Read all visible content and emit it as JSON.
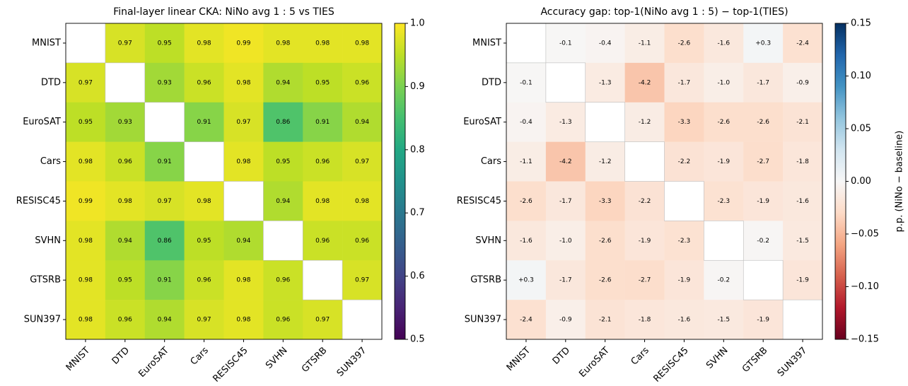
{
  "chart_data": [
    {
      "type": "heatmap",
      "title": "Final-layer linear CKA: NiNo avg 1 : 5 vs TIES",
      "x_categories": [
        "MNIST",
        "DTD",
        "EuroSAT",
        "Cars",
        "RESISC45",
        "SVHN",
        "GTSRB",
        "SUN397"
      ],
      "y_categories": [
        "MNIST",
        "DTD",
        "EuroSAT",
        "Cars",
        "RESISC45",
        "SVHN",
        "GTSRB",
        "SUN397"
      ],
      "values": [
        [
          null,
          0.97,
          0.95,
          0.98,
          0.99,
          0.98,
          0.98,
          0.98
        ],
        [
          0.97,
          null,
          0.93,
          0.96,
          0.98,
          0.94,
          0.95,
          0.96
        ],
        [
          0.95,
          0.93,
          null,
          0.91,
          0.97,
          0.86,
          0.91,
          0.94
        ],
        [
          0.98,
          0.96,
          0.91,
          null,
          0.98,
          0.95,
          0.96,
          0.97
        ],
        [
          0.99,
          0.98,
          0.97,
          0.98,
          null,
          0.94,
          0.98,
          0.98
        ],
        [
          0.98,
          0.94,
          0.86,
          0.95,
          0.94,
          null,
          0.96,
          0.96
        ],
        [
          0.98,
          0.95,
          0.91,
          0.96,
          0.98,
          0.96,
          null,
          0.97
        ],
        [
          0.98,
          0.96,
          0.94,
          0.97,
          0.98,
          0.96,
          0.97,
          null
        ]
      ],
      "colormap": "viridis",
      "clim": [
        0.5,
        1.0
      ],
      "colorbar_ticks": [
        0.5,
        0.6,
        0.7,
        0.8,
        0.9,
        {
          "value": 1.0,
          "label": "1.0"
        }
      ]
    },
    {
      "type": "heatmap",
      "title": "Accuracy gap: top-1(NiNo avg 1 : 5) − top-1(TIES)",
      "x_categories": [
        "MNIST",
        "DTD",
        "EuroSAT",
        "Cars",
        "RESISC45",
        "SVHN",
        "GTSRB",
        "SUN397"
      ],
      "y_categories": [
        "MNIST",
        "DTD",
        "EuroSAT",
        "Cars",
        "RESISC45",
        "SVHN",
        "GTSRB",
        "SUN397"
      ],
      "values": [
        [
          null,
          -0.001,
          -0.004,
          -0.011,
          -0.026,
          -0.016,
          0.003,
          -0.024
        ],
        [
          -0.001,
          null,
          -0.013,
          -0.042,
          -0.017,
          -0.01,
          -0.017,
          -0.009
        ],
        [
          -0.004,
          -0.013,
          null,
          -0.012,
          -0.033,
          -0.026,
          -0.026,
          -0.021
        ],
        [
          -0.011,
          -0.042,
          -0.012,
          null,
          -0.022,
          -0.019,
          -0.027,
          -0.018
        ],
        [
          -0.026,
          -0.017,
          -0.033,
          -0.022,
          null,
          -0.023,
          -0.019,
          -0.016
        ],
        [
          -0.016,
          -0.01,
          -0.026,
          -0.019,
          -0.023,
          null,
          -0.002,
          -0.015
        ],
        [
          0.003,
          -0.017,
          -0.026,
          -0.027,
          -0.019,
          -0.002,
          null,
          -0.019
        ],
        [
          -0.024,
          -0.009,
          -0.021,
          -0.018,
          -0.016,
          -0.015,
          -0.019,
          null
        ]
      ],
      "value_labels": [
        [
          null,
          "-0.1",
          "-0.4",
          "-1.1",
          "-2.6",
          "-1.6",
          "+0.3",
          "-2.4"
        ],
        [
          "-0.1",
          null,
          "-1.3",
          "-4.2",
          "-1.7",
          "-1.0",
          "-1.7",
          "-0.9"
        ],
        [
          "-0.4",
          "-1.3",
          null,
          "-1.2",
          "-3.3",
          "-2.6",
          "-2.6",
          "-2.1"
        ],
        [
          "-1.1",
          "-4.2",
          "-1.2",
          null,
          "-2.2",
          "-1.9",
          "-2.7",
          "-1.8"
        ],
        [
          "-2.6",
          "-1.7",
          "-3.3",
          "-2.2",
          null,
          "-2.3",
          "-1.9",
          "-1.6"
        ],
        [
          "-1.6",
          "-1.0",
          "-2.6",
          "-1.9",
          "-2.3",
          null,
          "-0.2",
          "-1.5"
        ],
        [
          "+0.3",
          "-1.7",
          "-2.6",
          "-2.7",
          "-1.9",
          "-0.2",
          null,
          "-1.9"
        ],
        [
          "-2.4",
          "-0.9",
          "-2.1",
          "-1.8",
          "-1.6",
          "-1.5",
          "-1.9",
          null
        ]
      ],
      "colormap": "RdBu",
      "clim": [
        -0.15,
        0.15
      ],
      "colorbar_ticks": [
        {
          "value": -0.15,
          "label": "−0.15"
        },
        {
          "value": -0.1,
          "label": "−0.10"
        },
        {
          "value": -0.05,
          "label": "−0.05"
        },
        {
          "value": 0,
          "label": "0.00"
        },
        0.05,
        {
          "value": 0.1,
          "label": "0.10"
        },
        0.15
      ],
      "colorbar_label": "p.p. (NiNo − baseline)"
    }
  ]
}
